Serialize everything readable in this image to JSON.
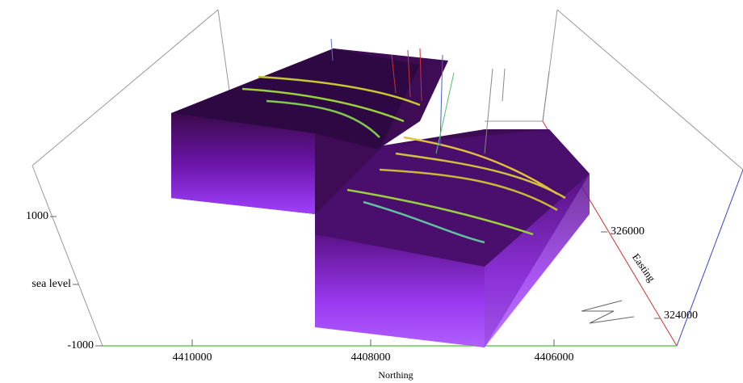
{
  "vertical_axis": {
    "ticks": [
      "1000",
      "sea level",
      "-1000"
    ]
  },
  "northing_axis": {
    "title": "Northing",
    "ticks": [
      "4410000",
      "4408000",
      "4406000"
    ]
  },
  "easting_axis": {
    "title": "Easting",
    "ticks": [
      "326000",
      "324000"
    ]
  }
}
